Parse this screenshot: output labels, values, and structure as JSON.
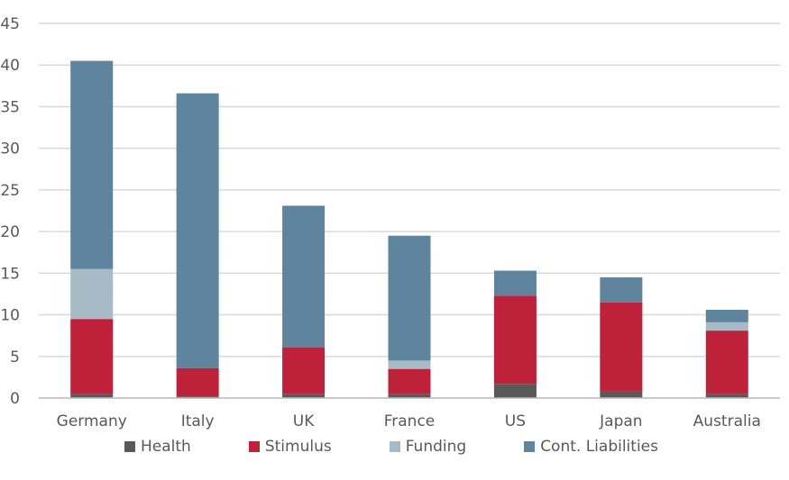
{
  "chart_data": {
    "type": "bar",
    "stacked": true,
    "categories": [
      "Germany",
      "Italy",
      "UK",
      "France",
      "US",
      "Japan",
      "Australia"
    ],
    "series": [
      {
        "name": "Health",
        "color": "#595959",
        "values": [
          0.5,
          0.2,
          0.5,
          0.5,
          1.7,
          0.8,
          0.5
        ]
      },
      {
        "name": "Stimulus",
        "color": "#C0213A",
        "values": [
          9.0,
          3.4,
          5.6,
          3.0,
          10.6,
          10.7,
          7.6
        ]
      },
      {
        "name": "Funding",
        "color": "#A7BBC7",
        "values": [
          6.0,
          0.0,
          0.0,
          1.0,
          0.0,
          0.0,
          1.0
        ]
      },
      {
        "name": "Cont. Liabilities",
        "color": "#5E849E",
        "values": [
          25.0,
          33.0,
          17.0,
          15.0,
          3.0,
          3.0,
          1.5
        ]
      }
    ],
    "ylim": [
      0,
      45
    ],
    "yticks": [
      0,
      5,
      10,
      15,
      20,
      25,
      30,
      35,
      40,
      45
    ],
    "grid": true,
    "legend_position": "bottom",
    "title": "",
    "xlabel": "",
    "ylabel": ""
  }
}
